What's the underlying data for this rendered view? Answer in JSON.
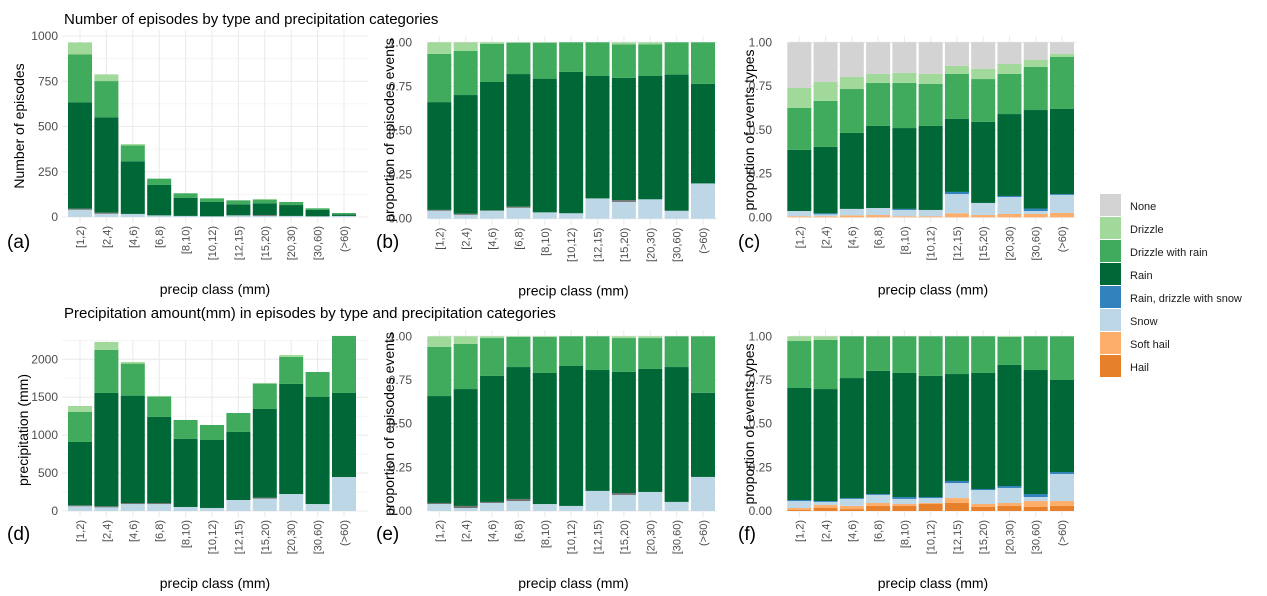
{
  "categories": [
    "[1,2)",
    "[2,4)",
    "[4,6)",
    "[6,8)",
    "[8,10)",
    "[10,12)",
    "[12,15)",
    "[15,20)",
    "[20,30)",
    "[30,60)",
    "(>60)"
  ],
  "legend": {
    "items": [
      {
        "key": "none",
        "label": "None",
        "color": "#d3d3d3"
      },
      {
        "key": "drizzle",
        "label": "Drizzle",
        "color": "#a1d99b"
      },
      {
        "key": "dwr",
        "label": "Drizzle with rain",
        "color": "#41ab5d"
      },
      {
        "key": "rain",
        "label": "Rain",
        "color": "#006837"
      },
      {
        "key": "rdws",
        "label": "Rain, drizzle with snow",
        "color": "#3182bd"
      },
      {
        "key": "snow",
        "label": "Snow",
        "color": "#bdd7e7"
      },
      {
        "key": "softhail",
        "label": "Soft hail",
        "color": "#fdae6b"
      },
      {
        "key": "hail",
        "label": "Hail",
        "color": "#e6802a"
      }
    ],
    "unlisted_color": "#737373",
    "placement": "right"
  },
  "chart_data": [
    {
      "id": "a",
      "panel_label": "(a)",
      "type": "bar",
      "stacked": true,
      "title": "Number of episodes by type and precipitation categories",
      "xlabel": "precip class (mm)",
      "ylabel": "Number of episodes",
      "ylim": [
        0,
        1000
      ],
      "yticks": [
        0,
        250,
        500,
        750,
        1000
      ],
      "ytick_labels": [
        "0",
        "250",
        "500",
        "750",
        "1000"
      ],
      "series": [
        {
          "key": "snow",
          "name": "Snow",
          "values": [
            40,
            18,
            17,
            9,
            6,
            4,
            9,
            6,
            6,
            4,
            6
          ]
        },
        {
          "key": "unlisted",
          "name": "(unlabeled gray)",
          "values": [
            6,
            6,
            0,
            0,
            0,
            0,
            0,
            5,
            0,
            0,
            0
          ]
        },
        {
          "key": "rain",
          "name": "Rain",
          "values": [
            588,
            527,
            291,
            168,
            99,
            79,
            61,
            65,
            60,
            35,
            9
          ]
        },
        {
          "key": "dwr",
          "name": "Drizzle with rain",
          "values": [
            265,
            200,
            88,
            35,
            26,
            20,
            22,
            20,
            17,
            9,
            7
          ]
        },
        {
          "key": "drizzle",
          "name": "Drizzle",
          "values": [
            66,
            37,
            7,
            0,
            0,
            0,
            0,
            3,
            0,
            0,
            0
          ]
        }
      ]
    },
    {
      "id": "b",
      "panel_label": "(b)",
      "type": "bar",
      "stacked": true,
      "title": "",
      "xlabel": "precip class (mm)",
      "ylabel": "proportion of episodes events",
      "ylim": [
        0,
        1
      ],
      "yticks": [
        0,
        0.25,
        0.5,
        0.75,
        1
      ],
      "ytick_labels": [
        "0.00",
        "0.25",
        "0.50",
        "0.75",
        "1.00"
      ],
      "series": [
        {
          "key": "snow",
          "name": "Snow",
          "values": [
            0.045,
            0.022,
            0.045,
            0.062,
            0.036,
            0.031,
            0.115,
            0.095,
            0.11,
            0.045,
            0.2
          ]
        },
        {
          "key": "unlisted",
          "name": "(unlabeled gray)",
          "values": [
            0.005,
            0.006,
            0.002,
            0.006,
            0,
            0,
            0,
            0.01,
            0,
            0,
            0
          ]
        },
        {
          "key": "rain",
          "name": "Rain",
          "values": [
            0.611,
            0.673,
            0.728,
            0.752,
            0.758,
            0.801,
            0.694,
            0.693,
            0.699,
            0.772,
            0.564
          ]
        },
        {
          "key": "dwr",
          "name": "Drizzle with rain",
          "values": [
            0.273,
            0.251,
            0.217,
            0.178,
            0.204,
            0.168,
            0.191,
            0.191,
            0.18,
            0.183,
            0.236
          ]
        },
        {
          "key": "drizzle",
          "name": "Drizzle",
          "values": [
            0.066,
            0.048,
            0.008,
            0.002,
            0.002,
            0,
            0,
            0.011,
            0.011,
            0,
            0
          ]
        }
      ]
    },
    {
      "id": "c",
      "panel_label": "(c)",
      "type": "bar",
      "stacked": true,
      "title": "",
      "xlabel": "precip class (mm)",
      "ylabel": "proportion of events types",
      "ylim": [
        0,
        1
      ],
      "yticks": [
        0,
        0.25,
        0.5,
        0.75,
        1
      ],
      "ytick_labels": [
        "0.00",
        "0.25",
        "0.50",
        "0.75",
        "1.00"
      ],
      "series": [
        {
          "key": "hail",
          "name": "Hail",
          "values": [
            0,
            0,
            0,
            0,
            0,
            0,
            0,
            0,
            0,
            0,
            0
          ]
        },
        {
          "key": "softhail",
          "name": "Soft hail",
          "values": [
            0.006,
            0.006,
            0.011,
            0.013,
            0.006,
            0.006,
            0.023,
            0.013,
            0.019,
            0.019,
            0.025
          ]
        },
        {
          "key": "snow",
          "name": "Snow",
          "values": [
            0.03,
            0.011,
            0.037,
            0.04,
            0.036,
            0.036,
            0.11,
            0.069,
            0.097,
            0.017,
            0.103
          ]
        },
        {
          "key": "rdws",
          "name": "Rain, drizzle with snow",
          "values": [
            0,
            0.006,
            0,
            0,
            0.006,
            0,
            0.012,
            0,
            0.006,
            0.014,
            0.005
          ]
        },
        {
          "key": "rain",
          "name": "Rain",
          "values": [
            0.349,
            0.379,
            0.434,
            0.469,
            0.462,
            0.48,
            0.417,
            0.463,
            0.468,
            0.563,
            0.486
          ]
        },
        {
          "key": "dwr",
          "name": "Drizzle with rain",
          "values": [
            0.24,
            0.263,
            0.251,
            0.246,
            0.258,
            0.24,
            0.257,
            0.245,
            0.229,
            0.246,
            0.297
          ]
        },
        {
          "key": "drizzle",
          "name": "Drizzle",
          "values": [
            0.114,
            0.108,
            0.069,
            0.051,
            0.057,
            0.057,
            0.046,
            0.058,
            0.057,
            0.04,
            0.017
          ]
        },
        {
          "key": "none",
          "name": "None",
          "values": [
            0.261,
            0.227,
            0.198,
            0.181,
            0.175,
            0.181,
            0.135,
            0.152,
            0.124,
            0.101,
            0.067
          ]
        }
      ]
    },
    {
      "id": "d",
      "panel_label": "(d)",
      "type": "bar",
      "stacked": true,
      "title": "Precipitation amount(mm) in episodes by type and precipitation categories",
      "xlabel": "precip class (mm)",
      "ylabel": "precipitation (mm)",
      "ylim": [
        0,
        2350
      ],
      "yticks": [
        0,
        500,
        1000,
        1500,
        2000
      ],
      "ytick_labels": [
        "0",
        "500",
        "1000",
        "1500",
        "2000"
      ],
      "series": [
        {
          "key": "snow",
          "name": "Snow",
          "values": [
            62,
            48,
            92,
            92,
            53,
            40,
            145,
            163,
            224,
            92,
            448
          ]
        },
        {
          "key": "unlisted",
          "name": "(unlabeled gray)",
          "values": [
            13,
            14,
            13,
            13,
            0,
            0,
            0,
            13,
            0,
            0,
            0
          ]
        },
        {
          "key": "rain",
          "name": "Rain",
          "values": [
            835,
            1494,
            1416,
            1135,
            897,
            896,
            897,
            1169,
            1451,
            1411,
            1108
          ]
        },
        {
          "key": "dwr",
          "name": "Drizzle with rain",
          "values": [
            396,
            567,
            422,
            268,
            250,
            198,
            250,
            334,
            356,
            330,
            752
          ]
        },
        {
          "key": "drizzle",
          "name": "Drizzle",
          "values": [
            79,
            106,
            22,
            9,
            0,
            0,
            0,
            9,
            26,
            0,
            0
          ]
        }
      ]
    },
    {
      "id": "e",
      "panel_label": "(e)",
      "type": "bar",
      "stacked": true,
      "title": "",
      "xlabel": "precip class (mm)",
      "ylabel": "proportion of episodes events",
      "ylim": [
        0,
        1
      ],
      "yticks": [
        0,
        0.25,
        0.5,
        0.75,
        1
      ],
      "ytick_labels": [
        "0.00",
        "0.25",
        "0.50",
        "0.75",
        "1.00"
      ],
      "series": [
        {
          "key": "snow",
          "name": "Snow",
          "values": [
            0.04,
            0.017,
            0.046,
            0.057,
            0.04,
            0.029,
            0.115,
            0.092,
            0.109,
            0.052,
            0.195
          ]
        },
        {
          "key": "unlisted",
          "name": "(unlabeled gray)",
          "values": [
            0.006,
            0.012,
            0.006,
            0.012,
            0,
            0,
            0,
            0.011,
            0,
            0,
            0
          ]
        },
        {
          "key": "rain",
          "name": "Rain",
          "values": [
            0.612,
            0.669,
            0.721,
            0.755,
            0.75,
            0.801,
            0.692,
            0.693,
            0.704,
            0.772,
            0.481
          ]
        },
        {
          "key": "dwr",
          "name": "Drizzle with rain",
          "values": [
            0.281,
            0.258,
            0.217,
            0.172,
            0.206,
            0.17,
            0.193,
            0.194,
            0.177,
            0.176,
            0.324
          ]
        },
        {
          "key": "drizzle",
          "name": "Drizzle",
          "values": [
            0.061,
            0.044,
            0.01,
            0.004,
            0.004,
            0,
            0,
            0.01,
            0.01,
            0,
            0
          ]
        }
      ]
    },
    {
      "id": "f",
      "panel_label": "(f)",
      "type": "bar",
      "stacked": true,
      "title": "",
      "xlabel": "precip class (mm)",
      "ylabel": "proportion of events types",
      "ylim": [
        0,
        1
      ],
      "yticks": [
        0,
        0.25,
        0.5,
        0.75,
        1
      ],
      "ytick_labels": [
        "0.00",
        "0.25",
        "0.50",
        "0.75",
        "1.00"
      ],
      "series": [
        {
          "key": "hail",
          "name": "Hail",
          "values": [
            0.006,
            0.017,
            0.011,
            0.029,
            0.029,
            0.04,
            0.046,
            0.023,
            0.029,
            0.023,
            0.029
          ]
        },
        {
          "key": "softhail",
          "name": "Soft hail",
          "values": [
            0.011,
            0.017,
            0.018,
            0.017,
            0.011,
            0.006,
            0.028,
            0.017,
            0.017,
            0.034,
            0.028
          ]
        },
        {
          "key": "snow",
          "name": "Snow",
          "values": [
            0.04,
            0.018,
            0.04,
            0.046,
            0.029,
            0.028,
            0.086,
            0.08,
            0.086,
            0.023,
            0.155
          ]
        },
        {
          "key": "rdws",
          "name": "Rain, drizzle with snow",
          "values": [
            0.006,
            0.005,
            0.005,
            0.005,
            0.011,
            0.006,
            0.012,
            0.006,
            0.011,
            0.017,
            0.011
          ]
        },
        {
          "key": "rain",
          "name": "Rain",
          "values": [
            0.641,
            0.641,
            0.687,
            0.705,
            0.71,
            0.693,
            0.612,
            0.664,
            0.693,
            0.71,
            0.527
          ]
        },
        {
          "key": "dwr",
          "name": "Drizzle with rain",
          "values": [
            0.269,
            0.281,
            0.239,
            0.198,
            0.21,
            0.227,
            0.216,
            0.21,
            0.16,
            0.193,
            0.25
          ]
        },
        {
          "key": "drizzle",
          "name": "Drizzle",
          "values": [
            0.027,
            0.021,
            0,
            0,
            0,
            0,
            0,
            0,
            0.004,
            0,
            0
          ]
        }
      ]
    }
  ]
}
